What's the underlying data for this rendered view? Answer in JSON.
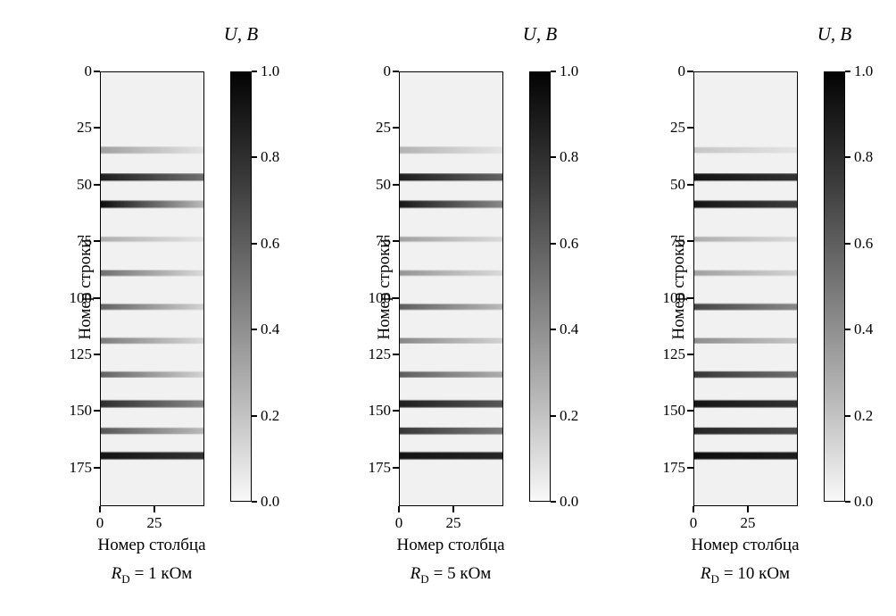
{
  "figure": {
    "background": "#ffffff",
    "text_color": "#000000",
    "colormap": "gray-reversed"
  },
  "panels": [
    {
      "ylabel": "Номер строки",
      "xlabel": "Номер столбца",
      "colorbar_title": "U, В",
      "cap_sym": "R",
      "cap_sub": "D",
      "cap_rest": "= 1 кОм"
    },
    {
      "ylabel": "Номер строки",
      "xlabel": "Номер столбца",
      "colorbar_title": "U, В",
      "cap_sym": "R",
      "cap_sub": "D",
      "cap_rest": "= 5 кОм"
    },
    {
      "ylabel": "Номер строки",
      "xlabel": "Номер столбца",
      "colorbar_title": "U, В",
      "cap_sym": "R",
      "cap_sub": "D",
      "cap_rest": "= 10 кОм"
    }
  ],
  "chart_data": [
    {
      "type": "heatmap",
      "title": "R_D = 1 кОм",
      "xlabel": "Номер столбца",
      "ylabel": "Номер строки",
      "colorbar_label": "U, В",
      "x_range": [
        0,
        48
      ],
      "y_range": [
        0,
        192
      ],
      "x_ticks": [
        0,
        25
      ],
      "y_ticks": [
        0,
        25,
        50,
        75,
        100,
        125,
        150,
        175
      ],
      "colorbar_ticks": [
        "1.0",
        "0.8",
        "0.6",
        "0.4",
        "0.2",
        "0.0"
      ],
      "colorbar_range": [
        0.0,
        1.0
      ],
      "background_value": 0.03,
      "stripes": [
        {
          "row": 34.5,
          "height": 3,
          "value": 0.35,
          "right_value": 0.08
        },
        {
          "row": 46.5,
          "height": 3.2,
          "value": 0.88,
          "right_value": 0.55
        },
        {
          "row": 58.5,
          "height": 3.2,
          "value": 0.95,
          "right_value": 0.25
        },
        {
          "row": 74,
          "height": 2.2,
          "value": 0.3,
          "right_value": 0.08
        },
        {
          "row": 89,
          "height": 2.6,
          "value": 0.55,
          "right_value": 0.12
        },
        {
          "row": 104,
          "height": 2.6,
          "value": 0.6,
          "right_value": 0.15
        },
        {
          "row": 119,
          "height": 2.6,
          "value": 0.5,
          "right_value": 0.12
        },
        {
          "row": 134,
          "height": 2.6,
          "value": 0.6,
          "right_value": 0.15
        },
        {
          "row": 147,
          "height": 3.2,
          "value": 0.82,
          "right_value": 0.45
        },
        {
          "row": 159,
          "height": 2.8,
          "value": 0.65,
          "right_value": 0.25
        },
        {
          "row": 170,
          "height": 3.2,
          "value": 0.92,
          "right_value": 0.8
        }
      ]
    },
    {
      "type": "heatmap",
      "title": "R_D = 5 кОм",
      "xlabel": "Номер столбца",
      "ylabel": "Номер строки",
      "colorbar_label": "U, В",
      "x_range": [
        0,
        48
      ],
      "y_range": [
        0,
        192
      ],
      "x_ticks": [
        0,
        25
      ],
      "y_ticks": [
        0,
        25,
        50,
        75,
        100,
        125,
        150,
        175
      ],
      "colorbar_ticks": [
        "1.0",
        "0.8",
        "0.6",
        "0.4",
        "0.2",
        "0.0"
      ],
      "colorbar_range": [
        0.0,
        1.0
      ],
      "background_value": 0.03,
      "stripes": [
        {
          "row": 34.5,
          "height": 3,
          "value": 0.28,
          "right_value": 0.08
        },
        {
          "row": 46.5,
          "height": 3.2,
          "value": 0.88,
          "right_value": 0.6
        },
        {
          "row": 58.5,
          "height": 3.2,
          "value": 0.9,
          "right_value": 0.45
        },
        {
          "row": 74,
          "height": 2.2,
          "value": 0.35,
          "right_value": 0.12
        },
        {
          "row": 89,
          "height": 2.4,
          "value": 0.4,
          "right_value": 0.12
        },
        {
          "row": 104,
          "height": 2.6,
          "value": 0.62,
          "right_value": 0.25
        },
        {
          "row": 119,
          "height": 2.4,
          "value": 0.45,
          "right_value": 0.15
        },
        {
          "row": 134,
          "height": 2.6,
          "value": 0.62,
          "right_value": 0.3
        },
        {
          "row": 147,
          "height": 3.2,
          "value": 0.88,
          "right_value": 0.65
        },
        {
          "row": 159,
          "height": 3,
          "value": 0.78,
          "right_value": 0.5
        },
        {
          "row": 170,
          "height": 3.2,
          "value": 0.92,
          "right_value": 0.85
        }
      ]
    },
    {
      "type": "heatmap",
      "title": "R_D = 10 кОм",
      "xlabel": "Номер столбца",
      "ylabel": "Номер строки",
      "colorbar_label": "U, В",
      "x_range": [
        0,
        48
      ],
      "y_range": [
        0,
        192
      ],
      "x_ticks": [
        0,
        25
      ],
      "y_ticks": [
        0,
        25,
        50,
        75,
        100,
        125,
        150,
        175
      ],
      "colorbar_ticks": [
        "1.0",
        "0.8",
        "0.6",
        "0.4",
        "0.2",
        "0.0"
      ],
      "colorbar_range": [
        0.0,
        1.0
      ],
      "background_value": 0.03,
      "stripes": [
        {
          "row": 34.5,
          "height": 2.6,
          "value": 0.2,
          "right_value": 0.08
        },
        {
          "row": 46.5,
          "height": 3.2,
          "value": 0.92,
          "right_value": 0.8
        },
        {
          "row": 58.5,
          "height": 3.2,
          "value": 0.92,
          "right_value": 0.75
        },
        {
          "row": 74,
          "height": 2.2,
          "value": 0.3,
          "right_value": 0.12
        },
        {
          "row": 89,
          "height": 2.4,
          "value": 0.35,
          "right_value": 0.15
        },
        {
          "row": 104,
          "height": 2.8,
          "value": 0.72,
          "right_value": 0.45
        },
        {
          "row": 119,
          "height": 2.4,
          "value": 0.42,
          "right_value": 0.2
        },
        {
          "row": 134,
          "height": 2.8,
          "value": 0.78,
          "right_value": 0.55
        },
        {
          "row": 147,
          "height": 3.2,
          "value": 0.92,
          "right_value": 0.8
        },
        {
          "row": 159,
          "height": 3,
          "value": 0.85,
          "right_value": 0.7
        },
        {
          "row": 170,
          "height": 3.2,
          "value": 0.95,
          "right_value": 0.88
        }
      ]
    }
  ]
}
